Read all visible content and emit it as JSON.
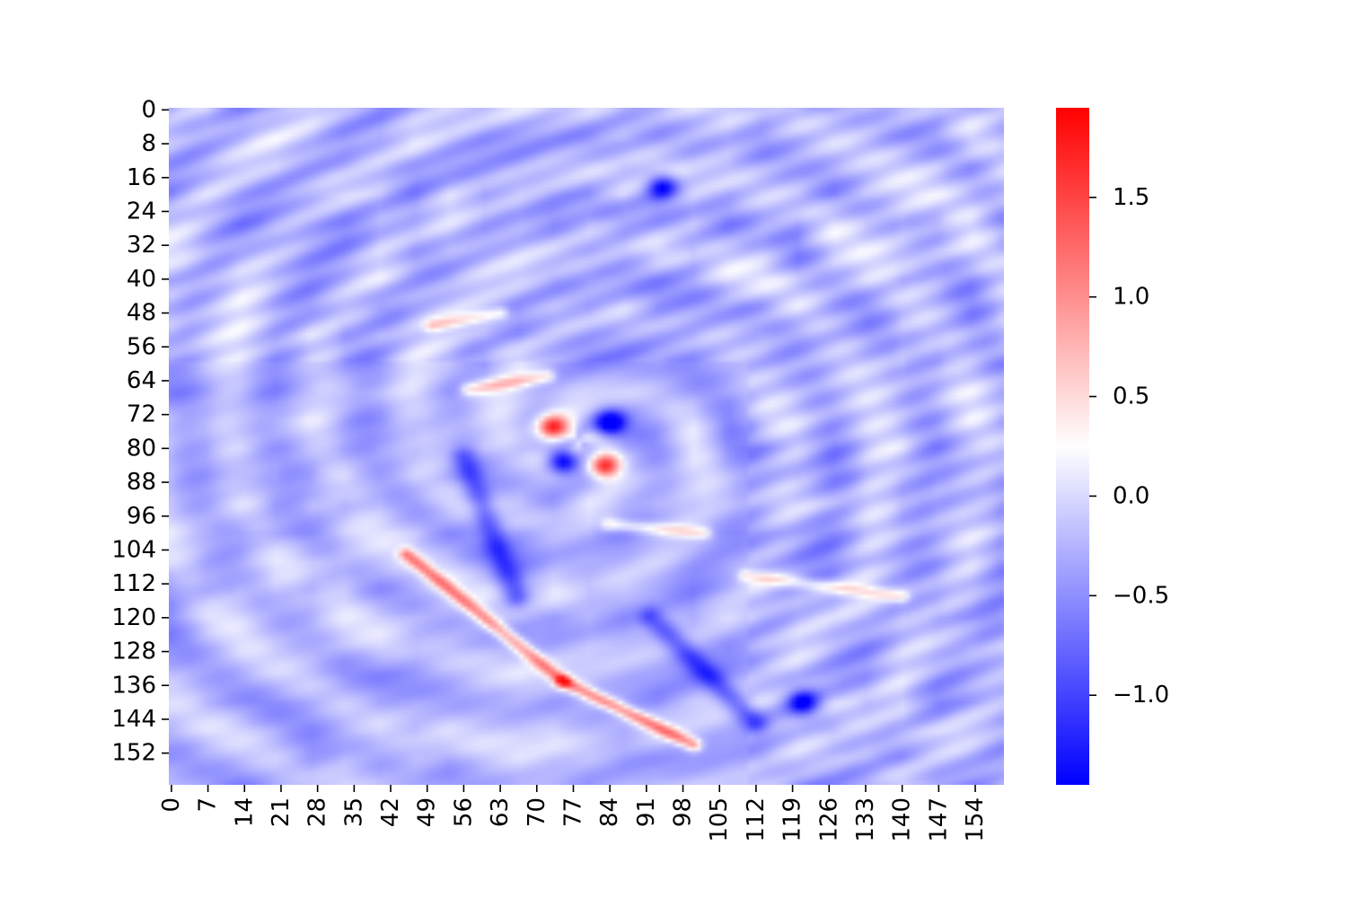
{
  "chart_data": {
    "type": "heatmap",
    "title": "",
    "xlabel": "",
    "ylabel": "",
    "grid": false,
    "legend": "colorbar-right",
    "n_rows": 160,
    "n_cols": 160,
    "row_tick_labels": [
      "0",
      "8",
      "16",
      "24",
      "32",
      "40",
      "48",
      "56",
      "64",
      "72",
      "80",
      "88",
      "96",
      "104",
      "112",
      "120",
      "128",
      "136",
      "144",
      "152"
    ],
    "col_tick_labels": [
      "0",
      "7",
      "14",
      "21",
      "28",
      "35",
      "42",
      "49",
      "56",
      "63",
      "70",
      "77",
      "84",
      "91",
      "98",
      "105",
      "112",
      "119",
      "126",
      "133",
      "140",
      "147",
      "154"
    ],
    "colorbar": {
      "colormap": "bwr",
      "vmin": -1.45,
      "vmax": 1.95,
      "low_color": "#0000ff",
      "mid_color": "#ffffff",
      "high_color": "#ff0000",
      "ticks": [
        -1.0,
        -0.5,
        0.0,
        0.5,
        1.0,
        1.5
      ],
      "tick_labels": [
        "−1.0",
        "−0.5",
        "0.0",
        "0.5",
        "1.0",
        "1.5"
      ]
    },
    "features": {
      "background_level": -0.25,
      "red_streaks": [
        {
          "row_start": 105,
          "col_start": 45,
          "row_end": 135,
          "col_end": 75,
          "peak": 1.2
        },
        {
          "row_start": 135,
          "col_start": 75,
          "row_end": 150,
          "col_end": 100,
          "peak": 1.3
        },
        {
          "row_start": 51,
          "col_start": 50,
          "row_end": 48,
          "col_end": 63,
          "peak": 0.7
        },
        {
          "row_start": 66,
          "col_start": 57,
          "row_end": 63,
          "col_end": 72,
          "peak": 0.7
        },
        {
          "row_start": 98,
          "col_start": 84,
          "row_end": 100,
          "col_end": 102,
          "peak": 0.65
        },
        {
          "row_start": 110,
          "col_start": 110,
          "row_end": 115,
          "col_end": 140,
          "peak": 0.6
        }
      ],
      "blue_streaks": [
        {
          "row_start": 82,
          "col_start": 56,
          "row_end": 115,
          "col_end": 66,
          "peak": -0.9
        },
        {
          "row_start": 120,
          "col_start": 92,
          "row_end": 145,
          "col_end": 112,
          "peak": -1.0
        }
      ],
      "blobs": [
        {
          "row": 75,
          "col": 73,
          "value": 1.9
        },
        {
          "row": 84,
          "col": 83,
          "value": 1.85
        },
        {
          "row": 74,
          "col": 84,
          "value": -1.45
        },
        {
          "row": 83,
          "col": 75,
          "value": -1.4
        },
        {
          "row": 140,
          "col": 121,
          "value": -1.2
        },
        {
          "row": 18,
          "col": 94,
          "value": -1.2
        }
      ]
    }
  }
}
